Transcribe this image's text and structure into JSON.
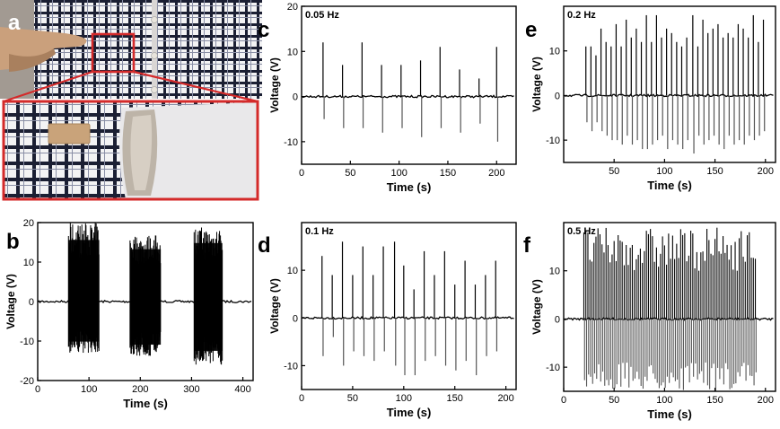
{
  "figure": {
    "panel_labels": {
      "a": "a",
      "b": "b",
      "c": "c",
      "d": "d",
      "e": "e",
      "f": "f"
    },
    "colors": {
      "signal": "#000000",
      "axis": "#000000",
      "zoom_box": "#d42a2a",
      "shirt_white": "#f3f3f4",
      "shirt_check": "#1b1f33",
      "skin": "#caa07c",
      "patch": "#c9a37a",
      "fabric": "#e9e8ea"
    }
  },
  "chart_data": [
    {
      "id": "b",
      "type": "line",
      "xlabel": "Time (s)",
      "ylabel": "Voltage (V)",
      "xlim": [
        0,
        420
      ],
      "ylim": [
        -20,
        20
      ],
      "xticks": [
        0,
        100,
        200,
        300,
        400
      ],
      "yticks": [
        -20,
        -10,
        0,
        10,
        20
      ],
      "grid": false,
      "bursts": [
        {
          "start": 60,
          "end": 120,
          "max": 20,
          "min": -13
        },
        {
          "start": 180,
          "end": 240,
          "max": 17,
          "min": -14
        },
        {
          "start": 305,
          "end": 360,
          "max": 19,
          "min": -16
        }
      ],
      "baseline": 0
    },
    {
      "id": "c",
      "type": "line",
      "annotation": "0.05 Hz",
      "xlabel": "Time (s)",
      "ylabel": "Voltage (V)",
      "xlim": [
        0,
        220
      ],
      "ylim": [
        -15,
        20
      ],
      "xticks": [
        0,
        50,
        100,
        150,
        200
      ],
      "yticks": [
        -10,
        0,
        10,
        20
      ],
      "grid": false,
      "peaks": [
        {
          "t": 22,
          "max": 12,
          "min": -5
        },
        {
          "t": 42,
          "max": 7,
          "min": -7
        },
        {
          "t": 62,
          "max": 12,
          "min": -7
        },
        {
          "t": 82,
          "max": 7,
          "min": -8
        },
        {
          "t": 102,
          "max": 7,
          "min": -7
        },
        {
          "t": 122,
          "max": 8,
          "min": -9
        },
        {
          "t": 142,
          "max": 11,
          "min": -7
        },
        {
          "t": 162,
          "max": 6,
          "min": -8
        },
        {
          "t": 182,
          "max": 4,
          "min": -6
        },
        {
          "t": 200,
          "max": 11,
          "min": -10
        }
      ]
    },
    {
      "id": "d",
      "type": "line",
      "annotation": "0.1 Hz",
      "xlabel": "Time (s)",
      "ylabel": "Voltage (V)",
      "xlim": [
        0,
        210
      ],
      "ylim": [
        -15,
        20
      ],
      "xticks": [
        0,
        50,
        100,
        150,
        200
      ],
      "yticks": [
        -10,
        0,
        10
      ],
      "grid": false,
      "peaks": [
        {
          "t": 20,
          "max": 13,
          "min": -8
        },
        {
          "t": 30,
          "max": 9,
          "min": -4
        },
        {
          "t": 40,
          "max": 16,
          "min": -10
        },
        {
          "t": 50,
          "max": 9,
          "min": -7
        },
        {
          "t": 60,
          "max": 15,
          "min": -8
        },
        {
          "t": 70,
          "max": 9,
          "min": -9
        },
        {
          "t": 80,
          "max": 15,
          "min": -7
        },
        {
          "t": 91,
          "max": 16,
          "min": -10
        },
        {
          "t": 100,
          "max": 11,
          "min": -12
        },
        {
          "t": 110,
          "max": 6,
          "min": -12
        },
        {
          "t": 120,
          "max": 14,
          "min": -9
        },
        {
          "t": 130,
          "max": 9,
          "min": -8
        },
        {
          "t": 140,
          "max": 14,
          "min": -10
        },
        {
          "t": 150,
          "max": 7,
          "min": -11
        },
        {
          "t": 160,
          "max": 12,
          "min": -9
        },
        {
          "t": 170,
          "max": 7,
          "min": -12
        },
        {
          "t": 180,
          "max": 9,
          "min": -8
        },
        {
          "t": 190,
          "max": 12,
          "min": -7
        }
      ]
    },
    {
      "id": "e",
      "type": "line",
      "annotation": "0.2 Hz",
      "xlabel": "Time (s)",
      "ylabel": "Voltage (V)",
      "xlim": [
        0,
        210
      ],
      "ylim": [
        -15,
        20
      ],
      "xticks": [
        50,
        100,
        150,
        200
      ],
      "yticks": [
        -10,
        0,
        10
      ],
      "grid": false,
      "peaks": [
        {
          "t": 22,
          "max": 11,
          "min": -6
        },
        {
          "t": 27,
          "max": 11,
          "min": -8
        },
        {
          "t": 32,
          "max": 9,
          "min": -6
        },
        {
          "t": 37,
          "max": 15,
          "min": -8
        },
        {
          "t": 42,
          "max": 12,
          "min": -9
        },
        {
          "t": 47,
          "max": 11,
          "min": -10
        },
        {
          "t": 52,
          "max": 16,
          "min": -10
        },
        {
          "t": 57,
          "max": 11,
          "min": -11
        },
        {
          "t": 62,
          "max": 17,
          "min": -9
        },
        {
          "t": 67,
          "max": 13,
          "min": -11
        },
        {
          "t": 72,
          "max": 15,
          "min": -10
        },
        {
          "t": 77,
          "max": 12,
          "min": -12
        },
        {
          "t": 82,
          "max": 18,
          "min": -12
        },
        {
          "t": 87,
          "max": 12,
          "min": -11
        },
        {
          "t": 92,
          "max": 18,
          "min": -10
        },
        {
          "t": 97,
          "max": 13,
          "min": -9
        },
        {
          "t": 102,
          "max": 15,
          "min": -12
        },
        {
          "t": 107,
          "max": 14,
          "min": -10
        },
        {
          "t": 112,
          "max": 12,
          "min": -11
        },
        {
          "t": 117,
          "max": 11,
          "min": -12
        },
        {
          "t": 122,
          "max": 13,
          "min": -10
        },
        {
          "t": 128,
          "max": 18,
          "min": -13
        },
        {
          "t": 133,
          "max": 11,
          "min": -9
        },
        {
          "t": 138,
          "max": 17,
          "min": -11
        },
        {
          "t": 143,
          "max": 14,
          "min": -10
        },
        {
          "t": 148,
          "max": 15,
          "min": -9
        },
        {
          "t": 153,
          "max": 16,
          "min": -11
        },
        {
          "t": 158,
          "max": 13,
          "min": -12
        },
        {
          "t": 163,
          "max": 14,
          "min": -9
        },
        {
          "t": 168,
          "max": 13,
          "min": -11
        },
        {
          "t": 173,
          "max": 16,
          "min": -10
        },
        {
          "t": 178,
          "max": 15,
          "min": -11
        },
        {
          "t": 183,
          "max": 13,
          "min": -9
        },
        {
          "t": 188,
          "max": 18,
          "min": -10
        },
        {
          "t": 193,
          "max": 12,
          "min": -9
        },
        {
          "t": 198,
          "max": 17,
          "min": -8
        }
      ]
    },
    {
      "id": "f",
      "type": "line",
      "annotation": "0.5 Hz",
      "xlabel": "Time (s)",
      "ylabel": "Voltage (V)",
      "xlim": [
        0,
        210
      ],
      "ylim": [
        -15,
        20
      ],
      "xticks": [
        0,
        50,
        100,
        150,
        200
      ],
      "yticks": [
        -10,
        0,
        10
      ],
      "grid": false,
      "envelope": {
        "start": 20,
        "end": 190,
        "period": 2,
        "max_range": [
          10,
          19
        ],
        "min_range": [
          -9,
          -15
        ]
      }
    }
  ]
}
